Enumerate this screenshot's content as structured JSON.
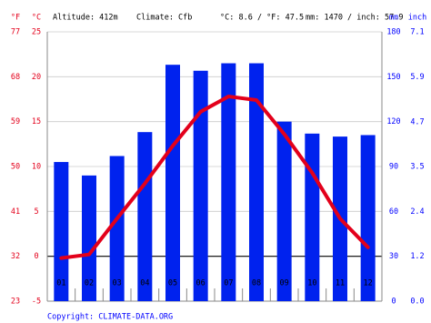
{
  "chart_data": {
    "type": "climate",
    "header": {
      "f_unit": "°F",
      "c_unit": "°C",
      "altitude": "Altitude: 412m",
      "climate": "Climate: Cfb",
      "temp": "°C: 8.6 / °F: 47.5",
      "precip": "mm: 1470 / inch: 57.9",
      "mm_unit": "mm",
      "inch_unit": "inch"
    },
    "copyright": "Copyright: CLIMATE-DATA.ORG",
    "categories": [
      "01",
      "02",
      "03",
      "04",
      "05",
      "06",
      "07",
      "08",
      "09",
      "10",
      "11",
      "12"
    ],
    "series": [
      {
        "color": "#0022ee",
        "axis": "y2",
        "values": [
          93,
          84,
          97,
          113,
          158,
          154,
          159,
          159,
          120,
          112,
          110,
          111
        ]
      },
      {
        "color": "#e3001b",
        "values": [
          -0.2,
          0.2,
          4.2,
          8.1,
          12.3,
          16.1,
          17.8,
          17.4,
          13.6,
          9.3,
          4.2,
          1.0
        ]
      }
    ],
    "ylim": [
      -5,
      25
    ],
    "yticks": [
      -5,
      0,
      5,
      10,
      15,
      20,
      25
    ],
    "yflim": [
      23,
      77
    ],
    "yfticks": [
      23,
      32,
      41,
      50,
      59,
      68,
      77
    ],
    "y2lim": [
      0,
      180
    ],
    "y2ticks": [
      0,
      30,
      60,
      90,
      120,
      150,
      180
    ],
    "y2inchlim": [
      0,
      7.09
    ],
    "y2inchticks": [
      {
        "value": 0,
        "label": "0.0"
      },
      {
        "value": 1.18,
        "label": "1.2"
      },
      {
        "value": 2.36,
        "label": "2.4"
      },
      {
        "value": 3.54,
        "label": "3.5"
      },
      {
        "value": 4.72,
        "label": "4.7"
      },
      {
        "value": 5.91,
        "label": "5.9"
      },
      {
        "value": 7.09,
        "label": "7.1"
      }
    ],
    "left_color": "#e3001b",
    "right_color": "#0000ff",
    "grid": true
  }
}
